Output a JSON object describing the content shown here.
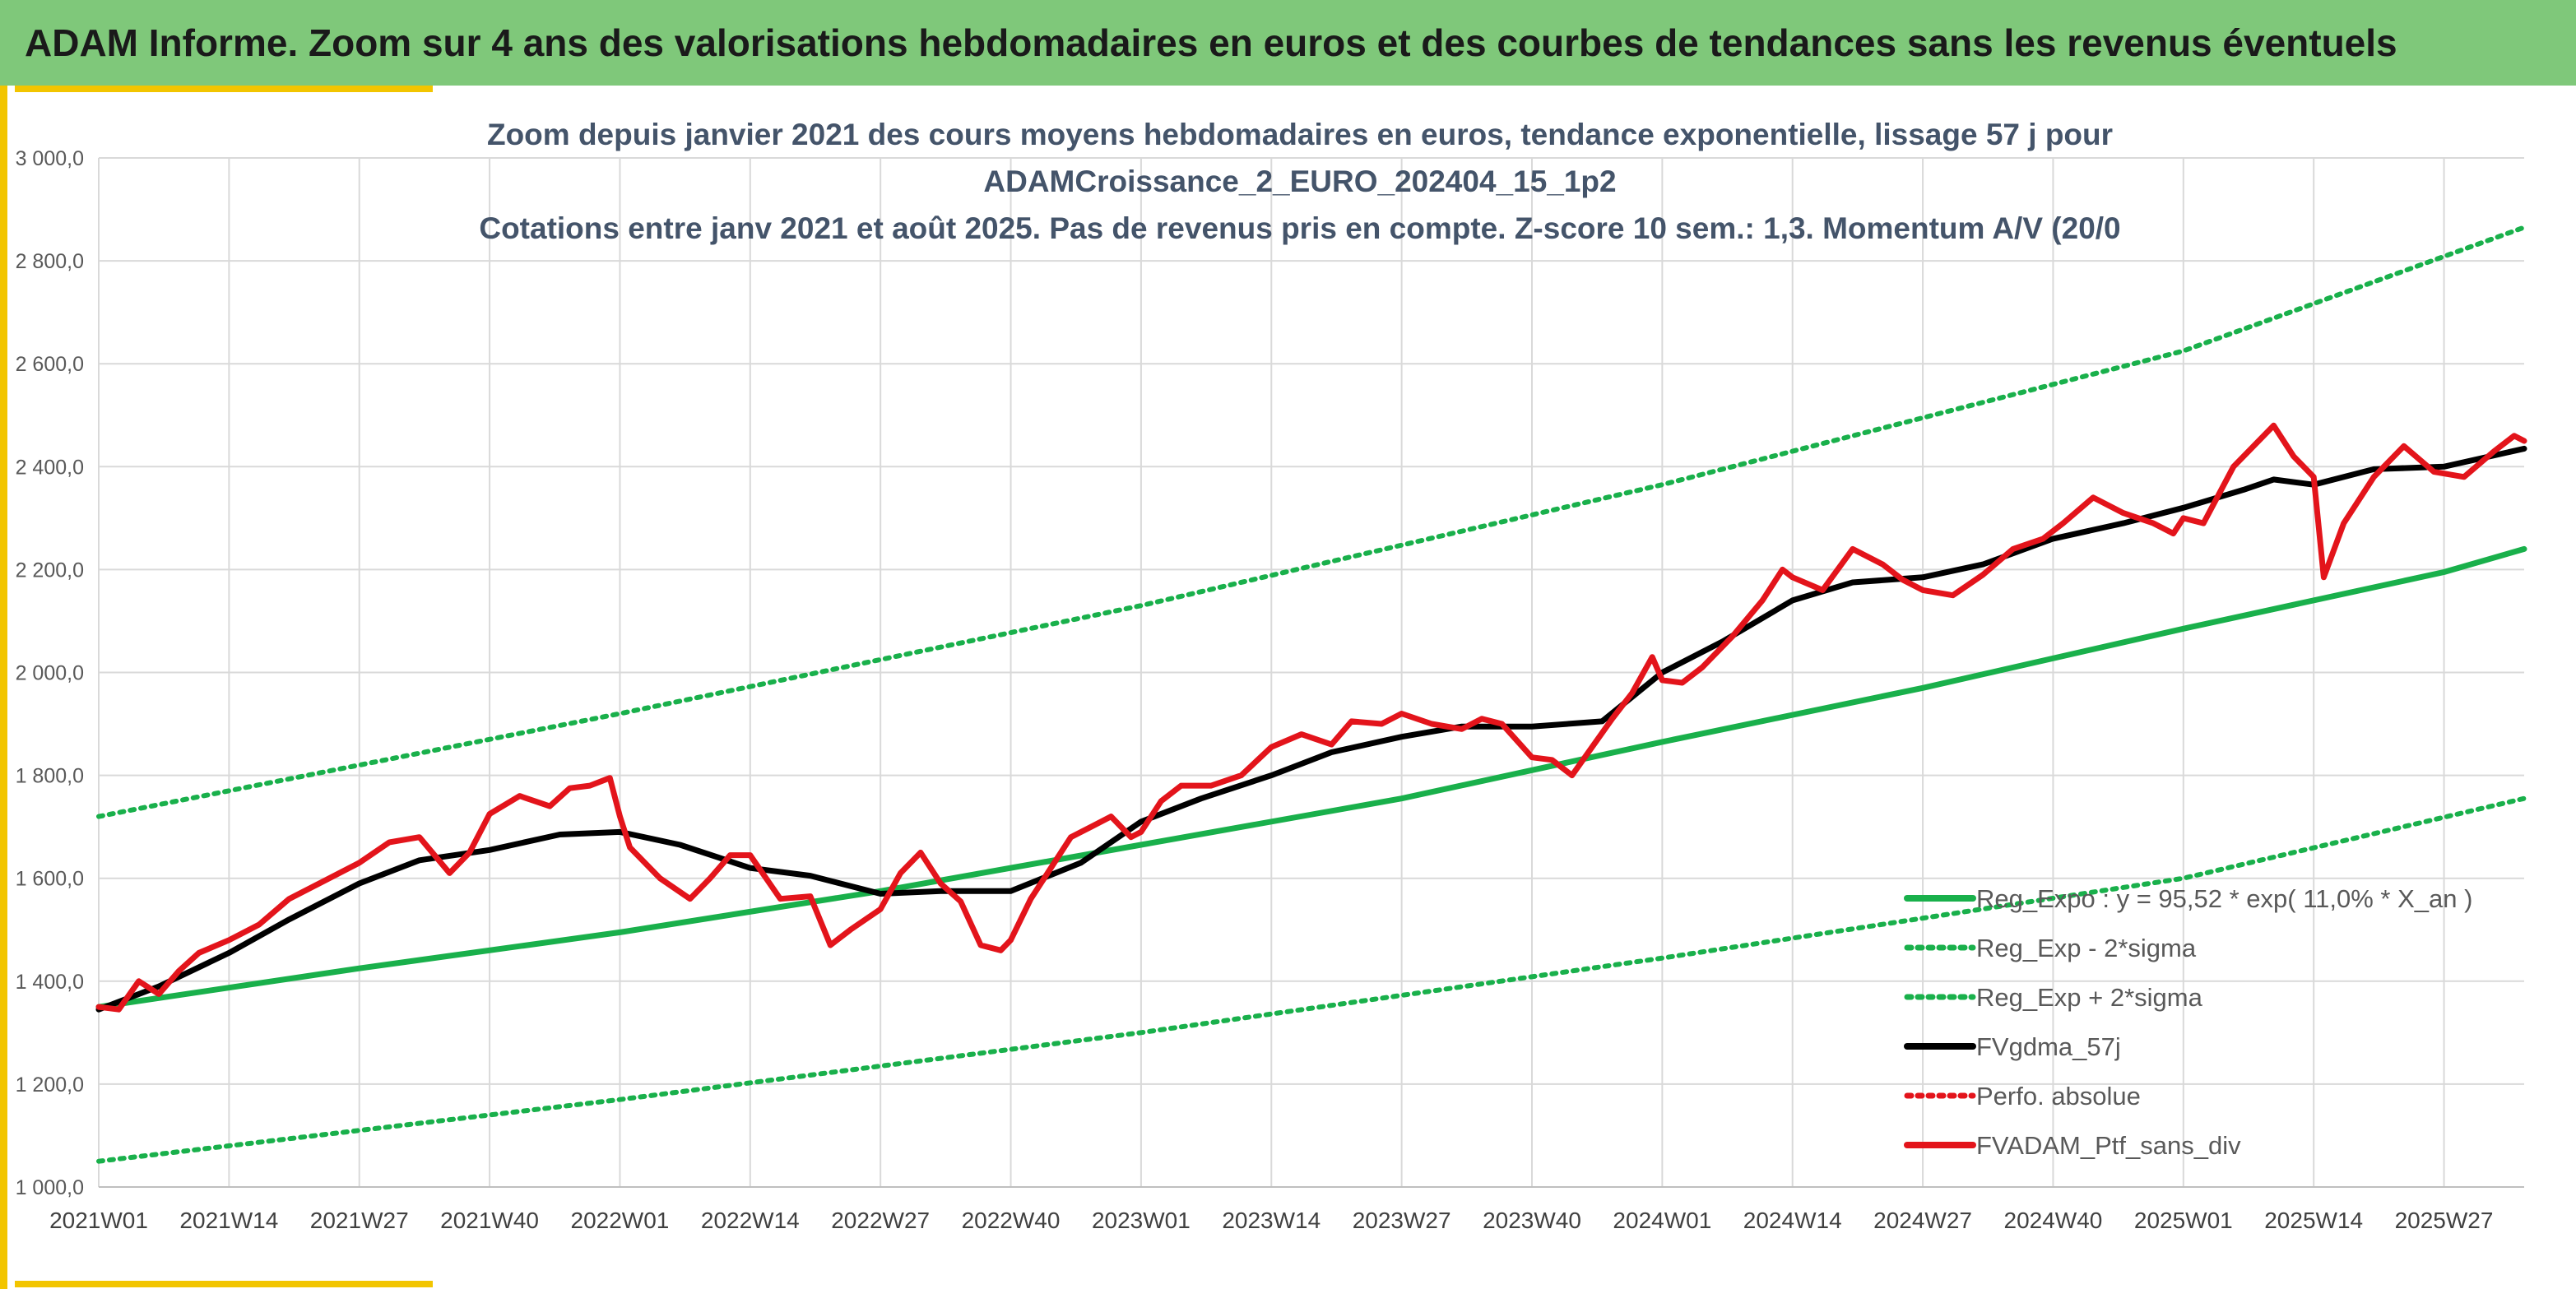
{
  "header": {
    "title": "ADAM Informe. Zoom sur 4 ans des valorisations hebdomadaires en euros et des courbes de tendances sans les revenus éventuels"
  },
  "colors": {
    "header_bg": "#7fc87a",
    "accent": "#f2c500",
    "trend_green": "#19b04b",
    "black": "#000000",
    "red": "#e3141b"
  },
  "chart_data": {
    "type": "line",
    "title": [
      "Zoom depuis janvier 2021 des cours moyens hebdomadaires en euros, tendance exponentielle, lissage 57 j pour",
      "ADAMCroissance_2_EURO_202404_15_1p2",
      "Cotations entre janv 2021 et août 2025. Pas de revenus pris en compte. Z-score 10 sem.: 1,3. Momentum A/V (20/0"
    ],
    "ylim": [
      1000,
      3000
    ],
    "y_ticks": [
      "1 000,0",
      "1 200,0",
      "1 400,0",
      "1 600,0",
      "1 800,0",
      "2 000,0",
      "2 200,0",
      "2 400,0",
      "2 600,0",
      "2 800,0",
      "3 000,0"
    ],
    "x_ticks": [
      "2021W01",
      "2021W14",
      "2021W27",
      "2021W40",
      "2022W01",
      "2022W14",
      "2022W27",
      "2022W40",
      "2023W01",
      "2023W14",
      "2023W27",
      "2023W40",
      "2024W01",
      "2024W14",
      "2024W27",
      "2024W40",
      "2025W01",
      "2025W14",
      "2025W27"
    ],
    "grid": true,
    "legend_position": "bottom-right",
    "series": [
      {
        "name": "Reg_Expo : y = 95,52 * exp( 11,0% *  X_an )",
        "style": "solid-green",
        "x": [
          "2021W01",
          "2021W27",
          "2022W01",
          "2022W27",
          "2023W01",
          "2023W27",
          "2024W01",
          "2024W27",
          "2025W01",
          "2025W27",
          "2025W35"
        ],
        "values": [
          1350,
          1425,
          1495,
          1575,
          1665,
          1755,
          1865,
          1970,
          2085,
          2195,
          2240
        ]
      },
      {
        "name": "Reg_Exp - 2*sigma",
        "style": "dotted-green",
        "x": [
          "2021W01",
          "2022W01",
          "2023W01",
          "2024W01",
          "2025W01",
          "2025W35"
        ],
        "values": [
          1050,
          1170,
          1300,
          1445,
          1600,
          1755
        ]
      },
      {
        "name": "Reg_Exp + 2*sigma",
        "style": "dotted-green",
        "x": [
          "2021W01",
          "2022W01",
          "2023W01",
          "2024W01",
          "2025W01",
          "2025W35"
        ],
        "values": [
          1720,
          1920,
          2130,
          2365,
          2625,
          2865
        ]
      },
      {
        "name": "FVgdma_57j",
        "style": "solid-black",
        "x": [
          "2021W01",
          "2021W07",
          "2021W14",
          "2021W20",
          "2021W27",
          "2021W33",
          "2021W40",
          "2021W47",
          "2022W01",
          "2022W07",
          "2022W14",
          "2022W20",
          "2022W27",
          "2022W33",
          "2022W40",
          "2022W47",
          "2023W01",
          "2023W07",
          "2023W14",
          "2023W20",
          "2023W27",
          "2023W33",
          "2023W40",
          "2023W47",
          "2024W01",
          "2024W07",
          "2024W14",
          "2024W20",
          "2024W27",
          "2024W33",
          "2024W40",
          "2024W47",
          "2025W01",
          "2025W07",
          "2025W10",
          "2025W14",
          "2025W20",
          "2025W27",
          "2025W35"
        ],
        "values": [
          1345,
          1390,
          1455,
          1520,
          1590,
          1635,
          1655,
          1685,
          1690,
          1665,
          1620,
          1605,
          1570,
          1575,
          1575,
          1630,
          1710,
          1755,
          1800,
          1845,
          1875,
          1895,
          1895,
          1905,
          2000,
          2060,
          2140,
          2175,
          2185,
          2210,
          2260,
          2290,
          2320,
          2355,
          2375,
          2365,
          2395,
          2400,
          2435
        ]
      },
      {
        "name": "Perfo. absolue",
        "style": "dotted-red",
        "x": [],
        "values": []
      },
      {
        "name": "FVADAM_Ptf_sans_div",
        "style": "solid-red",
        "x": [
          "2021W01",
          "2021W03",
          "2021W05",
          "2021W07",
          "2021W09",
          "2021W11",
          "2021W14",
          "2021W17",
          "2021W20",
          "2021W23",
          "2021W27",
          "2021W30",
          "2021W33",
          "2021W36",
          "2021W38",
          "2021W40",
          "2021W43",
          "2021W46",
          "2021W48",
          "2021W50",
          "2021W52",
          "2022W01",
          "2022W02",
          "2022W05",
          "2022W08",
          "2022W10",
          "2022W12",
          "2022W14",
          "2022W17",
          "2022W20",
          "2022W22",
          "2022W24",
          "2022W27",
          "2022W29",
          "2022W31",
          "2022W33",
          "2022W35",
          "2022W37",
          "2022W39",
          "2022W40",
          "2022W42",
          "2022W44",
          "2022W46",
          "2022W48",
          "2022W50",
          "2022W52",
          "2023W01",
          "2023W03",
          "2023W05",
          "2023W08",
          "2023W11",
          "2023W14",
          "2023W17",
          "2023W20",
          "2023W22",
          "2023W25",
          "2023W27",
          "2023W30",
          "2023W33",
          "2023W35",
          "2023W37",
          "2023W40",
          "2023W42",
          "2023W44",
          "2023W46",
          "2023W48",
          "2023W50",
          "2023W52",
          "2024W01",
          "2024W03",
          "2024W05",
          "2024W08",
          "2024W11",
          "2024W13",
          "2024W14",
          "2024W17",
          "2024W20",
          "2024W23",
          "2024W25",
          "2024W27",
          "2024W30",
          "2024W33",
          "2024W36",
          "2024W39",
          "2024W41",
          "2024W44",
          "2024W47",
          "2024W50",
          "2024W52",
          "2025W01",
          "2025W03",
          "2025W06",
          "2025W08",
          "2025W10",
          "2025W12",
          "2025W14",
          "2025W15",
          "2025W17",
          "2025W20",
          "2025W23",
          "2025W26",
          "2025W29",
          "2025W32",
          "2025W34",
          "2025W35"
        ],
        "values": [
          1350,
          1345,
          1400,
          1375,
          1420,
          1455,
          1480,
          1510,
          1560,
          1590,
          1630,
          1670,
          1680,
          1610,
          1650,
          1725,
          1760,
          1740,
          1775,
          1780,
          1795,
          1720,
          1660,
          1600,
          1560,
          1600,
          1645,
          1645,
          1560,
          1565,
          1470,
          1500,
          1540,
          1610,
          1650,
          1590,
          1555,
          1470,
          1460,
          1480,
          1560,
          1620,
          1680,
          1700,
          1720,
          1680,
          1690,
          1750,
          1780,
          1780,
          1800,
          1855,
          1880,
          1860,
          1905,
          1900,
          1920,
          1900,
          1890,
          1910,
          1900,
          1835,
          1830,
          1800,
          1855,
          1910,
          1960,
          2030,
          1985,
          1980,
          2010,
          2070,
          2140,
          2200,
          2185,
          2160,
          2240,
          2210,
          2180,
          2160,
          2150,
          2190,
          2240,
          2260,
          2290,
          2340,
          2310,
          2290,
          2270,
          2300,
          2290,
          2400,
          2440,
          2480,
          2420,
          2380,
          2185,
          2290,
          2380,
          2440,
          2390,
          2380,
          2430,
          2460,
          2450
        ]
      }
    ]
  }
}
